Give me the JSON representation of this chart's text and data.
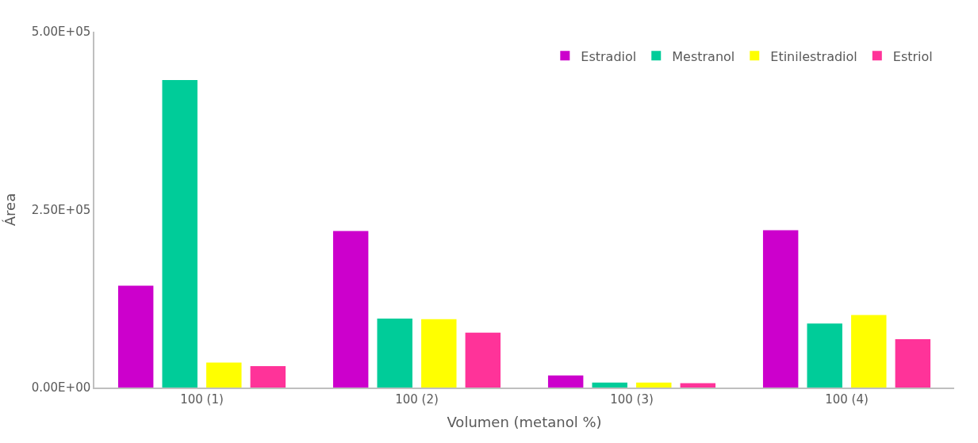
{
  "chart_data": {
    "type": "bar",
    "xlabel": "Volumen (metanol %)",
    "ylabel": "Área",
    "categories": [
      "100 (1)",
      "100 (2)",
      "100 (3)",
      "100 (4)"
    ],
    "series": [
      {
        "name": "Estradiol",
        "color": "#cc00cc",
        "values": [
          143000,
          220000,
          17000,
          221000
        ]
      },
      {
        "name": "Mestranol",
        "color": "#00cc99",
        "values": [
          432000,
          97000,
          7000,
          90000
        ]
      },
      {
        "name": "Etinilestradiol",
        "color": "#ffff00",
        "values": [
          35000,
          96000,
          7000,
          102000
        ]
      },
      {
        "name": "Estriol",
        "color": "#ff3399",
        "values": [
          30000,
          77000,
          6000,
          68000
        ]
      }
    ],
    "ylim": [
      0,
      500000
    ],
    "yticks": [
      {
        "value": 0,
        "label": "0.00E+00"
      },
      {
        "value": 250000,
        "label": "2.50E+05"
      },
      {
        "value": 500000,
        "label": "5.00E+05"
      }
    ],
    "grid": false,
    "legend": "top right"
  }
}
